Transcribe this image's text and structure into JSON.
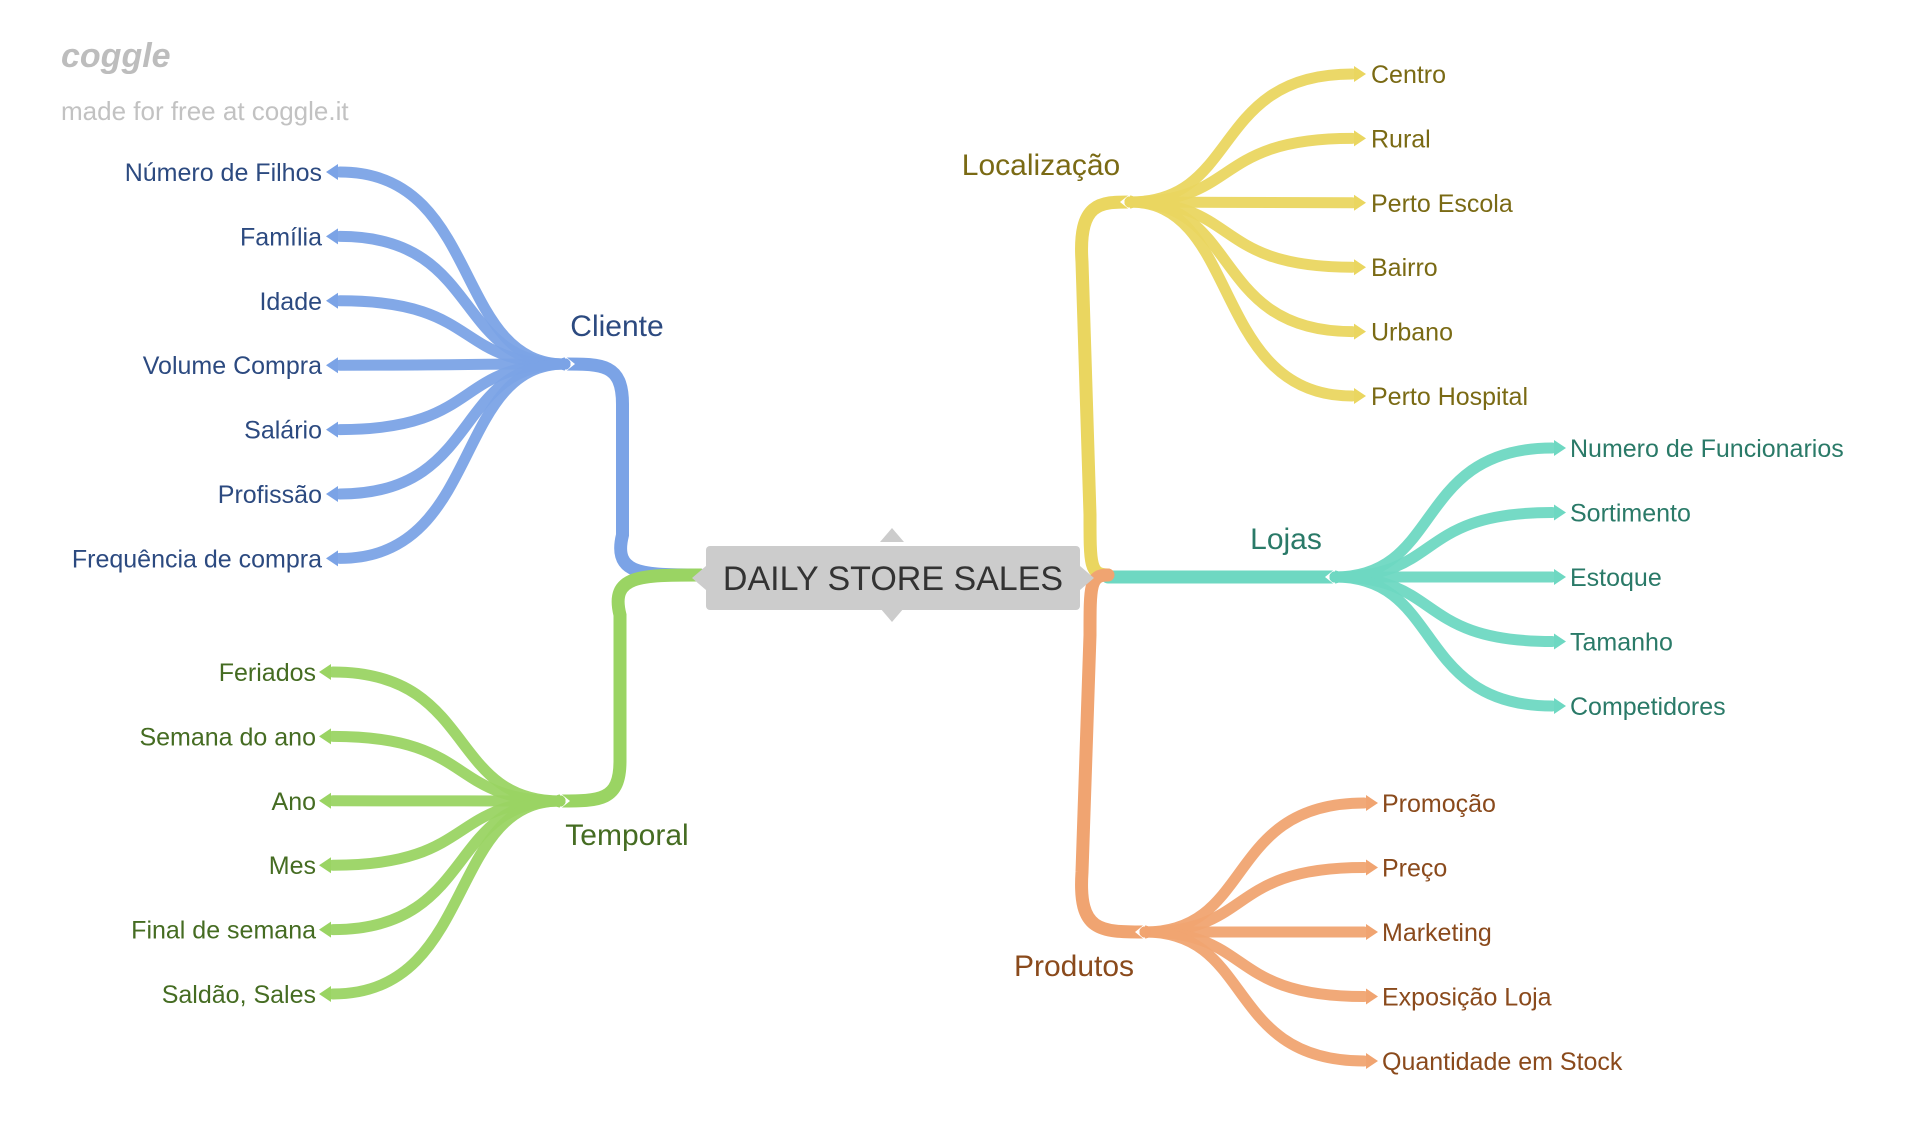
{
  "watermark": {
    "logo": "coggle",
    "caption": "made for free at coggle.it"
  },
  "center": {
    "label": "DAILY STORE SALES",
    "color": "#cccccc",
    "text_color": "#333333"
  },
  "branches": [
    {
      "key": "cliente",
      "label": "Cliente",
      "color": "#7ba3e6",
      "text_color": "#2c4a80",
      "children": [
        "Número de Filhos",
        "Família",
        "Idade",
        "Volume Compra",
        "Salário",
        "Profissão",
        "Frequência de compra"
      ]
    },
    {
      "key": "temporal",
      "label": "Temporal",
      "color": "#9ad463",
      "text_color": "#456c22",
      "children": [
        "Feriados",
        "Semana do ano",
        "Ano",
        "Mes",
        "Final de semana",
        "Saldão, Sales"
      ]
    },
    {
      "key": "localizacao",
      "label": "Localização",
      "color": "#ead660",
      "text_color": "#7a6a14",
      "children": [
        "Centro",
        "Rural",
        "Perto Escola",
        "Bairro",
        "Urbano",
        "Perto Hospital"
      ]
    },
    {
      "key": "lojas",
      "label": "Lojas",
      "color": "#6ed8c2",
      "text_color": "#2a7a68",
      "children": [
        "Numero de Funcionarios",
        "Sortimento",
        "Estoque",
        "Tamanho",
        "Competidores"
      ]
    },
    {
      "key": "produtos",
      "label": "Produtos",
      "color": "#f0a471",
      "text_color": "#8a4a1c",
      "children": [
        "Promoção",
        "Preço",
        "Marketing",
        "Exposição Loja",
        "Quantidade em Stock"
      ]
    }
  ]
}
